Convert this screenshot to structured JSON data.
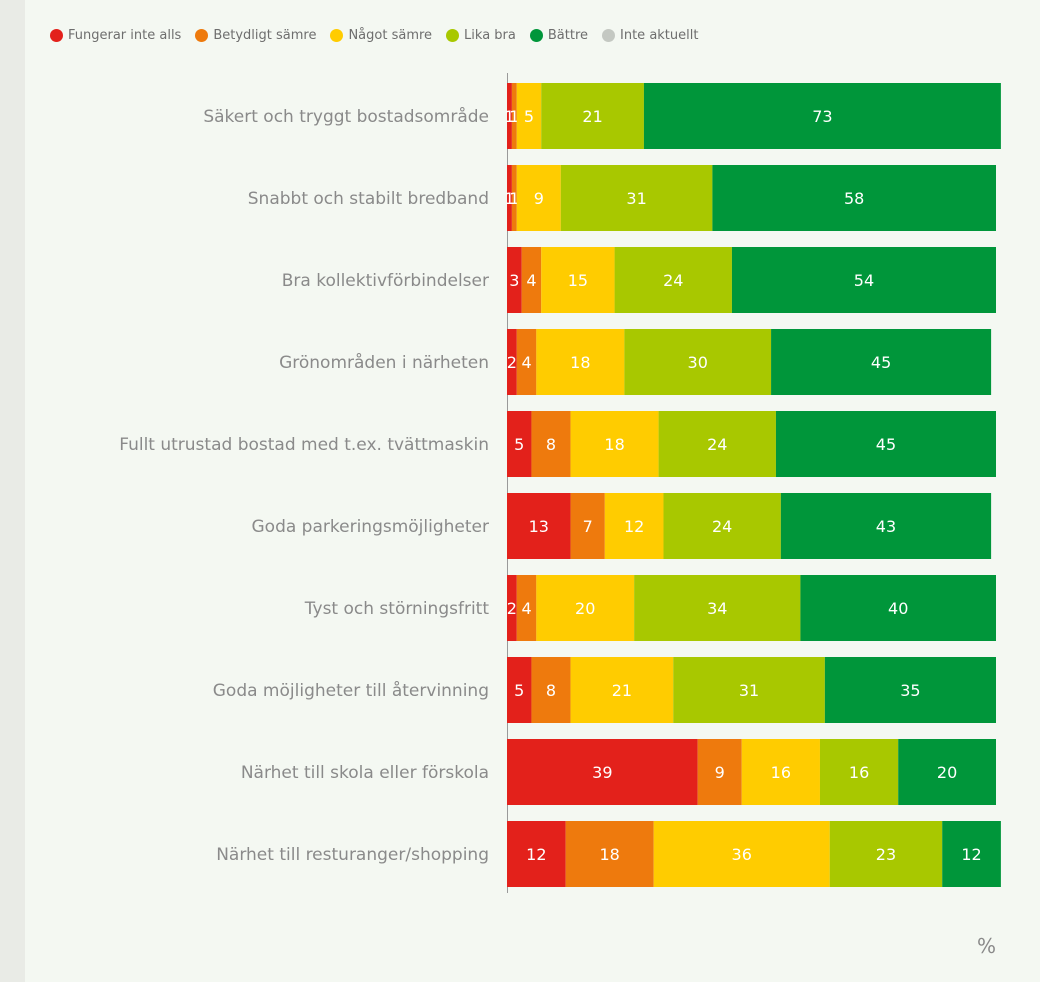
{
  "chart_data": {
    "type": "bar",
    "orientation": "horizontal",
    "stacked": true,
    "unit": "%",
    "xlim": [
      0,
      100
    ],
    "grid": false,
    "legend_position": "top-left",
    "categories": [
      "Säkert och tryggt bostadsområde",
      "Snabbt och stabilt bredband",
      "Bra kollektivförbindelser",
      "Grönområden i närheten",
      "Fullt utrustad bostad med t.ex. tvättmaskin",
      "Goda parkeringsmöjligheter",
      "Tyst och störningsfritt",
      "Goda möjligheter till återvinning",
      "Närhet till skola eller förskola",
      "Närhet till resturanger/shopping"
    ],
    "series": [
      {
        "name": "Fungerar inte alls",
        "color": "#e3211b",
        "values": [
          1,
          1,
          3,
          2,
          5,
          13,
          2,
          5,
          39,
          12
        ]
      },
      {
        "name": "Betydligt sämre",
        "color": "#ee7a0d",
        "values": [
          1,
          1,
          4,
          4,
          8,
          7,
          4,
          8,
          9,
          18
        ]
      },
      {
        "name": "Något sämre",
        "color": "#ffcc00",
        "values": [
          5,
          9,
          15,
          18,
          18,
          12,
          20,
          21,
          16,
          36
        ]
      },
      {
        "name": "Lika bra",
        "color": "#a8c800",
        "values": [
          21,
          31,
          24,
          30,
          24,
          24,
          34,
          31,
          16,
          23
        ]
      },
      {
        "name": "Bättre",
        "color": "#00963a",
        "values": [
          73,
          58,
          54,
          45,
          45,
          43,
          40,
          35,
          20,
          12
        ]
      },
      {
        "name": "Inte aktuellt",
        "color": "#c4c8c2",
        "values": [
          0,
          0,
          0,
          0,
          0,
          0,
          0,
          0,
          0,
          0
        ]
      }
    ]
  }
}
